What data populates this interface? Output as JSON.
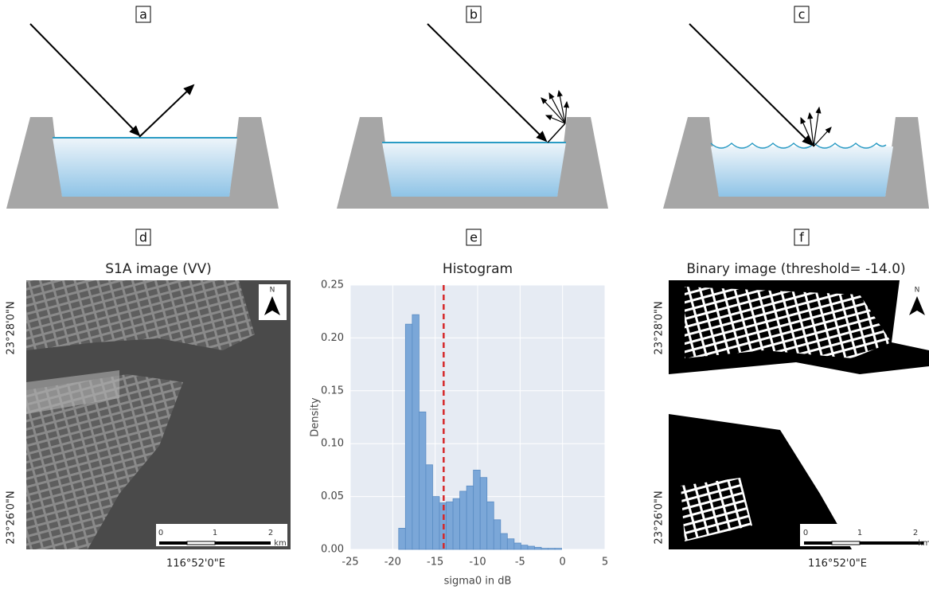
{
  "panel_labels": [
    "a",
    "b",
    "c",
    "d",
    "e",
    "f"
  ],
  "image_d": {
    "title": "S1A image (VV)",
    "lat_labels": [
      "23°28'0\"N",
      "23°26'0\"N"
    ],
    "lon_label": "116°52'0\"E",
    "scale_labels": [
      "0",
      "1",
      "2"
    ],
    "scale_unit": "km",
    "north": "N"
  },
  "image_f": {
    "title": "Binary image (threshold= -14.0)",
    "lat_labels": [
      "23°28'0\"N",
      "23°26'0\"N"
    ],
    "lon_label": "116°52'0\"E",
    "scale_labels": [
      "0",
      "1",
      "2"
    ],
    "scale_unit": "km",
    "north": "N"
  },
  "chart_data": {
    "type": "histogram",
    "title": "Histogram",
    "x_label": "sigma0 in dB",
    "y_label": "Density",
    "bins": [
      -19.3,
      -18.5,
      -17.7,
      -16.9,
      -16.1,
      -15.3,
      -14.5,
      -13.7,
      -12.9,
      -12.1,
      -11.3,
      -10.5,
      -9.7,
      -8.9,
      -8.1,
      -7.3,
      -6.5,
      -5.7,
      -4.9,
      -4.1,
      -3.3,
      -2.5,
      -1.7,
      -0.9,
      -0.1
    ],
    "values": [
      0.02,
      0.213,
      0.222,
      0.13,
      0.08,
      0.05,
      0.044,
      0.045,
      0.048,
      0.055,
      0.06,
      0.075,
      0.068,
      0.045,
      0.028,
      0.015,
      0.01,
      0.006,
      0.004,
      0.003,
      0.002,
      0.001,
      0.001,
      0.001
    ],
    "color": "#7ba7d8",
    "threshold": -14.0,
    "threshold_color": "#d62728",
    "xlim": [
      -25,
      5
    ],
    "xticks": [
      -25,
      -20,
      -15,
      -10,
      -5,
      0,
      5
    ],
    "ylim": [
      0,
      0.25
    ],
    "yticks": [
      {
        "value": 0,
        "label": "0.00"
      },
      {
        "value": 0.05,
        "label": "0.05"
      },
      {
        "value": 0.1,
        "label": "0.10"
      },
      {
        "value": 0.15,
        "label": "0.15"
      },
      {
        "value": 0.2,
        "label": "0.20"
      },
      {
        "value": 0.25,
        "label": "0.25"
      }
    ],
    "grid": true
  }
}
